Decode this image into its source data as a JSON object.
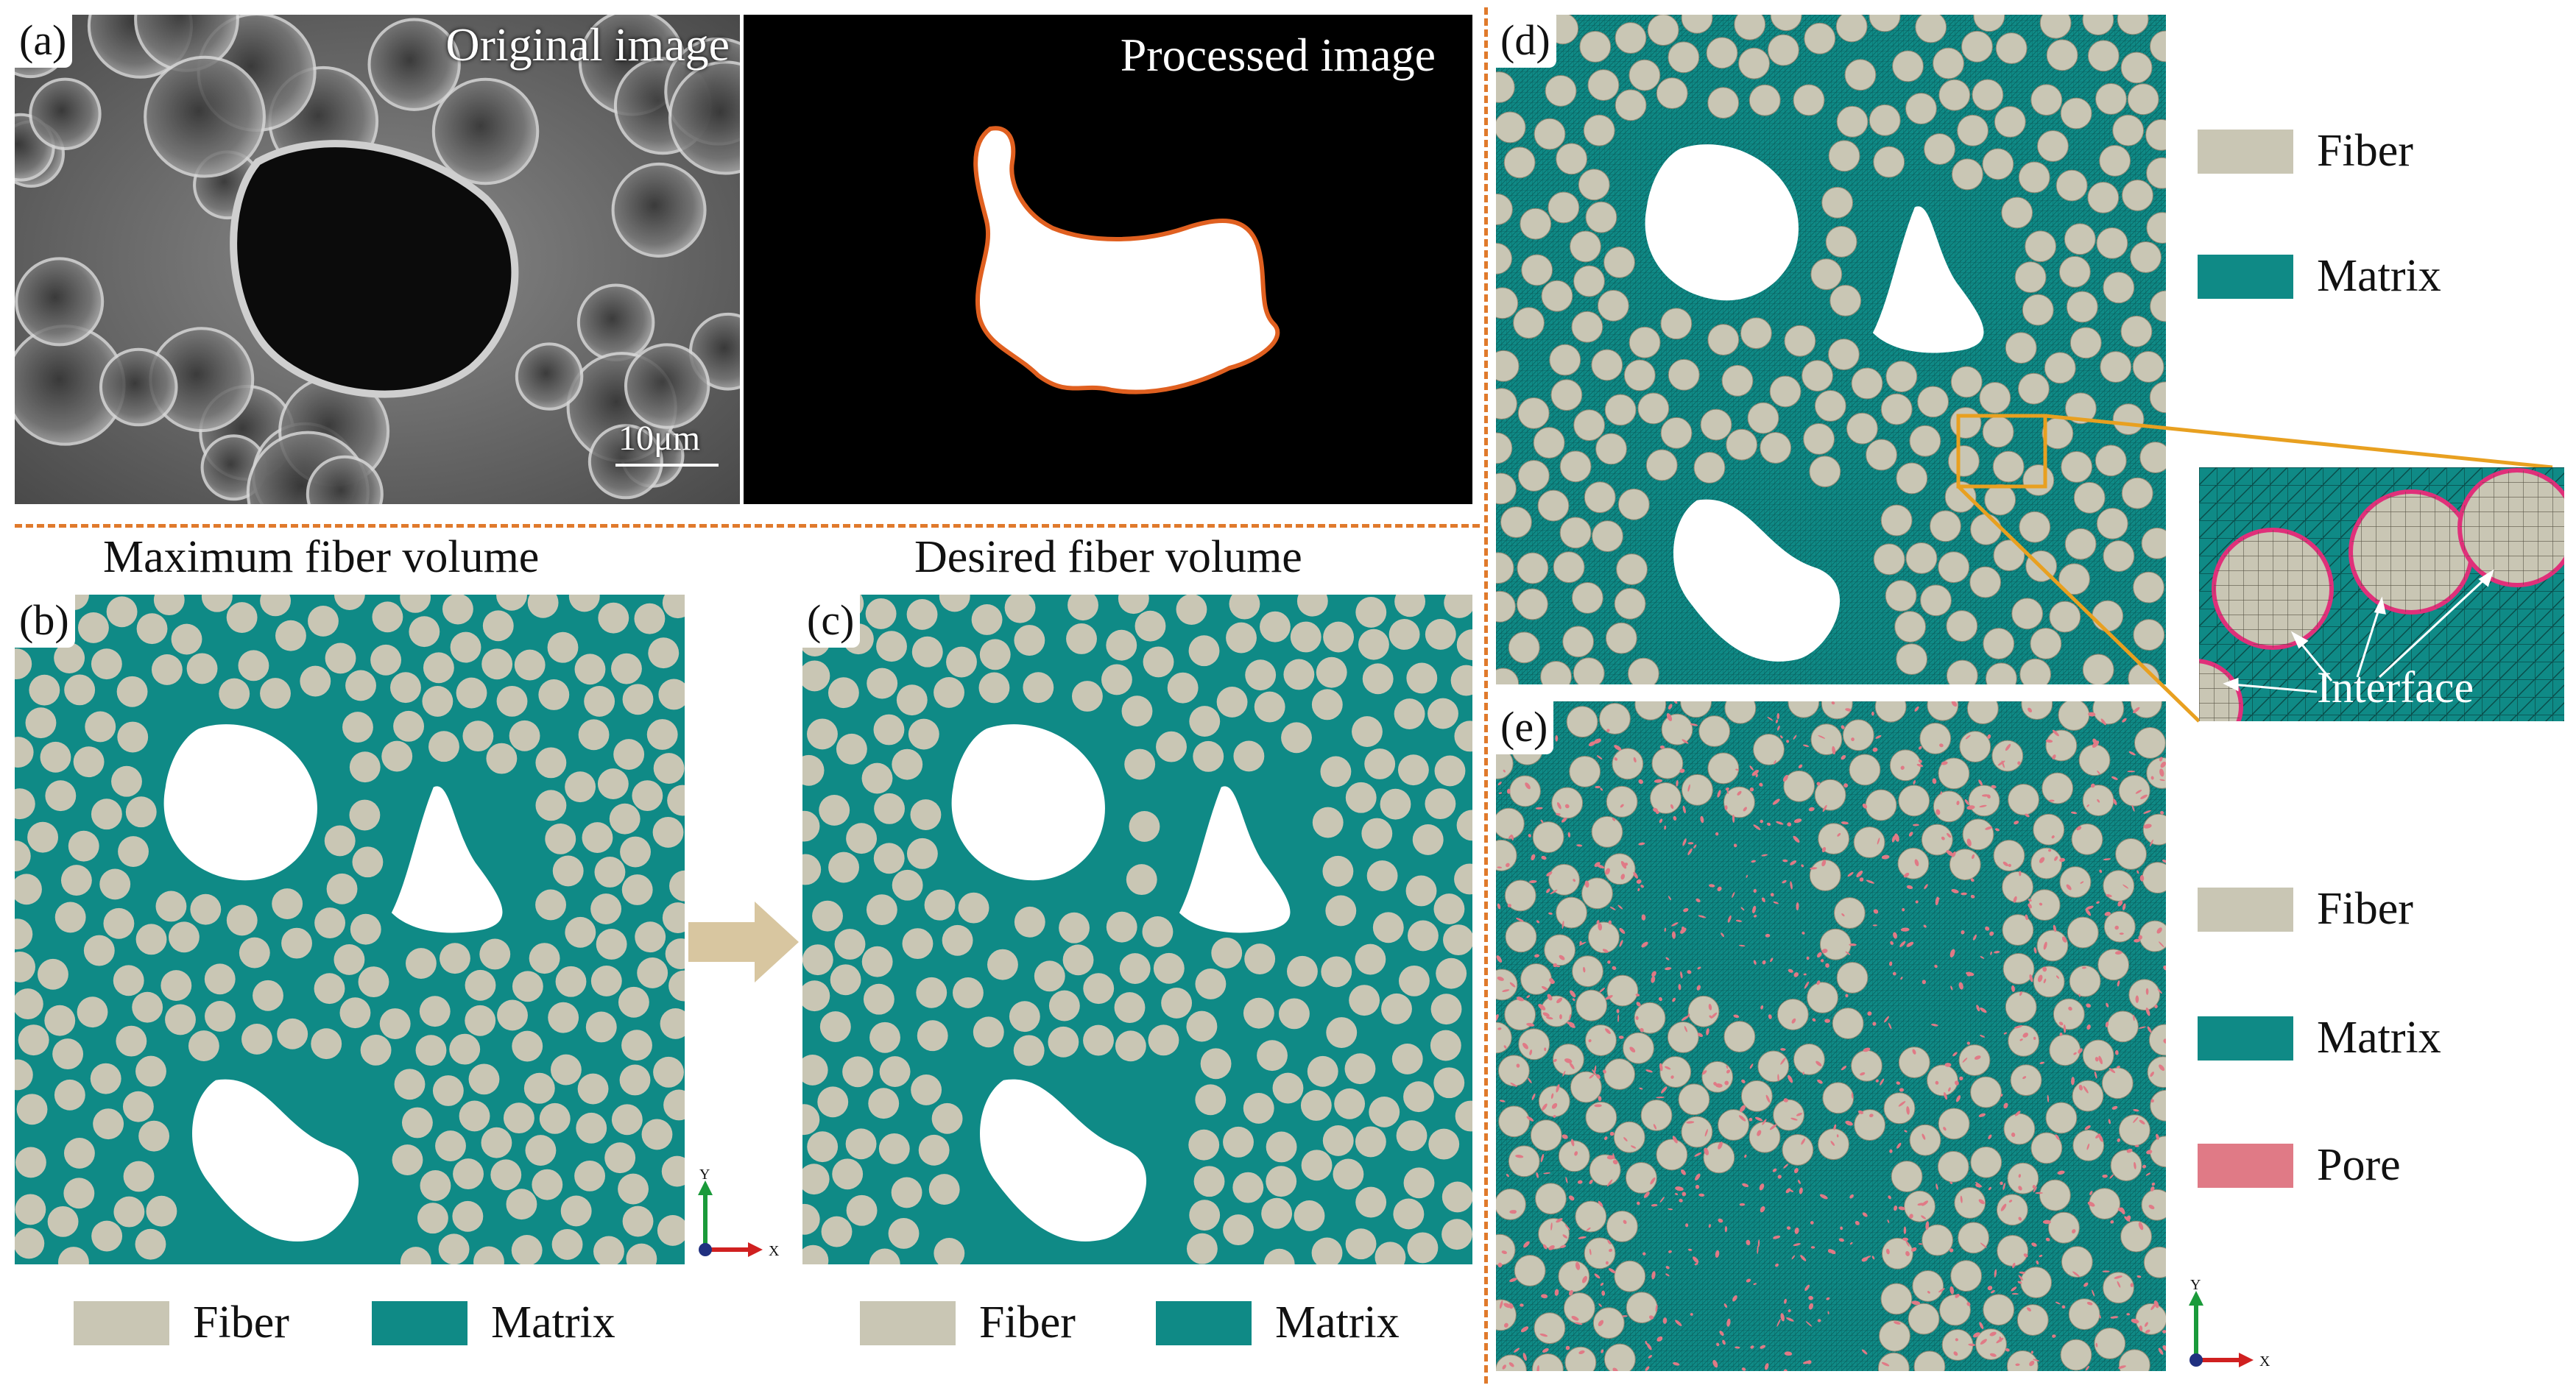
{
  "panels": {
    "a": {
      "label": "(a)",
      "original_title": "Original image",
      "processed_title": "Processed image",
      "scale_text": "10μm"
    },
    "b": {
      "label": "(b)",
      "heading": "Maximum fiber volume"
    },
    "c": {
      "label": "(c)",
      "heading": "Desired fiber volume"
    },
    "d": {
      "label": "(d)",
      "zoom_label": "Interface"
    },
    "e": {
      "label": "(e)"
    }
  },
  "legend_bc": {
    "fiber": "Fiber",
    "matrix": "Matrix"
  },
  "legend_d": {
    "fiber": "Fiber",
    "matrix": "Matrix"
  },
  "legend_e": {
    "fiber": "Fiber",
    "matrix": "Matrix",
    "pore": "Pore"
  },
  "axes": {
    "y": "Y",
    "x": "X"
  },
  "colors": {
    "fiber": "#c9c6b4",
    "matrix": "#0f8a86",
    "pore": "#e07a86",
    "divider": "#e07a2c",
    "zoom_box": "#e8a020",
    "interface": "#e0307a",
    "arrow": "#d8c6a0"
  }
}
